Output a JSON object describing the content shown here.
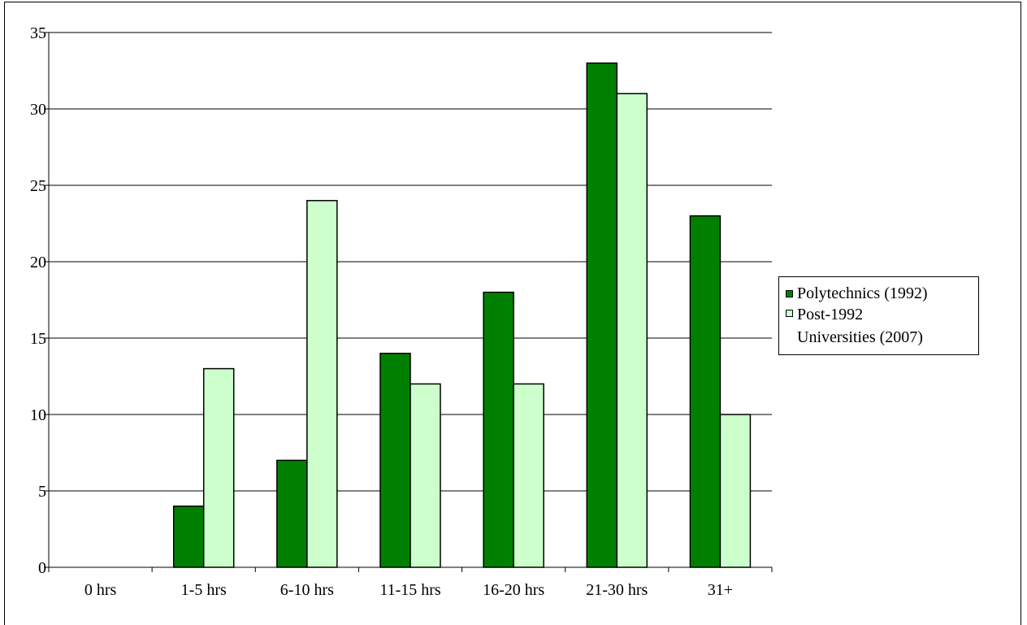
{
  "chart_data": {
    "type": "bar",
    "title": "",
    "xlabel": "",
    "ylabel": "",
    "categories": [
      "0 hrs",
      "1-5 hrs",
      "6-10 hrs",
      "11-15 hrs",
      "16-20 hrs",
      "21-30 hrs",
      "31+"
    ],
    "series": [
      {
        "name": "Polytechnics (1992)",
        "color": "#008000",
        "values": [
          0,
          4,
          7,
          14,
          18,
          33,
          23
        ]
      },
      {
        "name": "Post-1992 Universities (2007)",
        "color": "#ccffcc",
        "values": [
          0,
          13,
          24,
          12,
          12,
          31,
          10
        ]
      }
    ],
    "ylim": [
      0,
      35
    ],
    "yticks": [
      0,
      5,
      10,
      15,
      20,
      25,
      30,
      35
    ],
    "grid": true,
    "legend_position": "right"
  }
}
